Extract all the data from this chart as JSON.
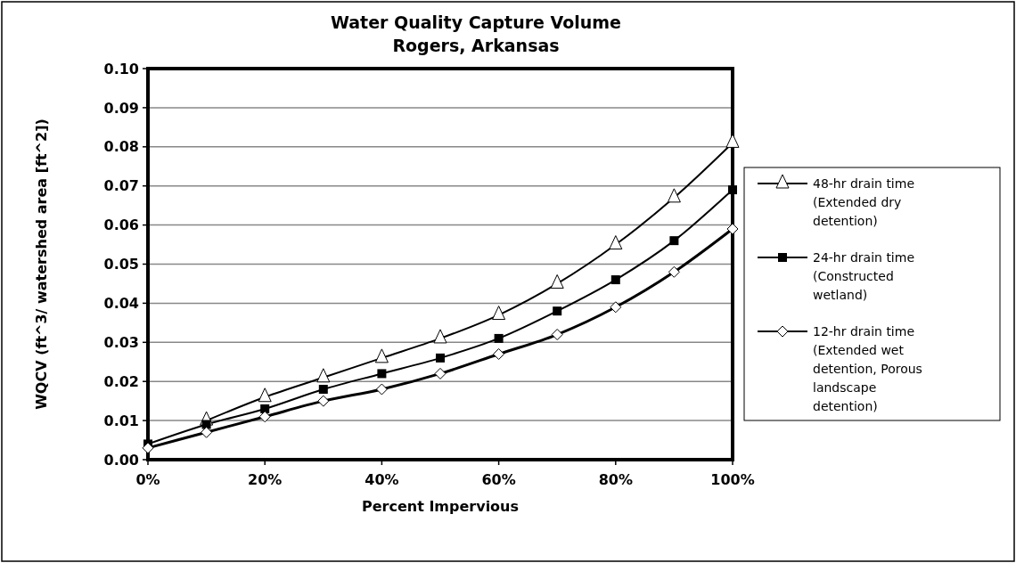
{
  "chart_data": {
    "type": "line",
    "title": "Water Quality Capture Volume\nRogers, Arkansas",
    "xlabel": "Percent Impervious",
    "ylabel": "WQCV (ft^3/ watershed area [ft^2])",
    "x": [
      0,
      10,
      20,
      30,
      40,
      50,
      60,
      70,
      80,
      90,
      100
    ],
    "xlim": [
      0,
      100
    ],
    "xticks": [
      {
        "value": 0,
        "label": "0%"
      },
      {
        "value": 20,
        "label": "20%"
      },
      {
        "value": 40,
        "label": "40%"
      },
      {
        "value": 60,
        "label": "60%"
      },
      {
        "value": 80,
        "label": "80%"
      },
      {
        "value": 100,
        "label": "100%"
      }
    ],
    "ylim": [
      0,
      0.1
    ],
    "yticks": [
      {
        "value": 0,
        "label": "0.00"
      },
      {
        "value": 0.01,
        "label": "0.01"
      },
      {
        "value": 0.02,
        "label": "0.02"
      },
      {
        "value": 0.03,
        "label": "0.03"
      },
      {
        "value": 0.04,
        "label": "0.04"
      },
      {
        "value": 0.05,
        "label": "0.05"
      },
      {
        "value": 0.06,
        "label": "0.06"
      },
      {
        "value": 0.07,
        "label": "0.07"
      },
      {
        "value": 0.08,
        "label": "0.08"
      },
      {
        "value": 0.09,
        "label": "0.09"
      },
      {
        "value": 0.1,
        "label": "0.10"
      }
    ],
    "grid": "y",
    "legend": "right",
    "series": [
      {
        "name": "48-hr drain time (Extended dry detention)",
        "color": "#000000",
        "marker": "triangle",
        "values": [
          null,
          0.01,
          0.016,
          0.021,
          0.026,
          0.031,
          0.037,
          0.045,
          0.055,
          0.067,
          0.081
        ]
      },
      {
        "name": "24-hr drain time (Constructed wetland)",
        "color": "#000000",
        "marker": "square",
        "values": [
          0.004,
          0.009,
          0.013,
          0.018,
          0.022,
          0.026,
          0.031,
          0.038,
          0.046,
          0.056,
          0.069
        ]
      },
      {
        "name": "12-hr drain time (Extended wet detention, Porous landscape detention)",
        "color": "#000000",
        "marker": "diamond",
        "values": [
          0.003,
          0.007,
          0.011,
          0.015,
          0.018,
          0.022,
          0.027,
          0.032,
          0.039,
          0.048,
          0.059
        ]
      }
    ]
  }
}
